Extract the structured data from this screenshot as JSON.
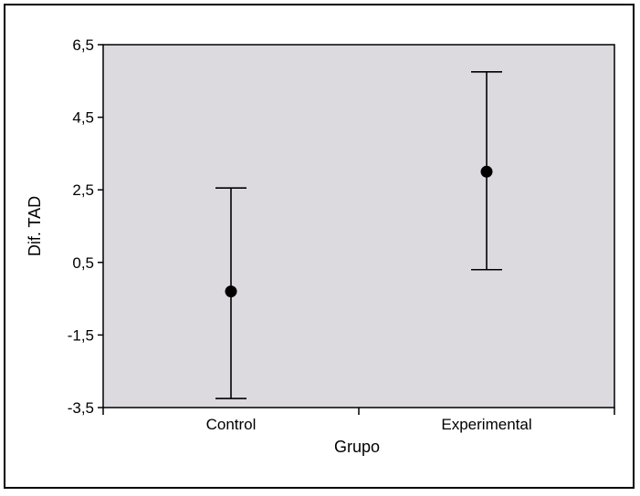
{
  "chart_data": {
    "type": "errorbar",
    "title": "",
    "xlabel": "Grupo",
    "ylabel": "Dif. TAD",
    "categories": [
      "Control",
      "Experimental"
    ],
    "series": [
      {
        "means": [
          -0.3,
          3.0
        ],
        "lower": [
          -3.25,
          0.3
        ],
        "upper": [
          2.55,
          5.75
        ]
      }
    ],
    "ylim": [
      -3.5,
      6.5
    ],
    "yticks": [
      -3.5,
      -1.5,
      0.5,
      2.5,
      4.5,
      6.5
    ],
    "ytick_labels": [
      "-3,5",
      "-1,5",
      "0,5",
      "2,5",
      "4,5",
      "6,5"
    ],
    "grid": false,
    "colors": {
      "plot_background": "#dcdadf",
      "marker": "#000000",
      "errorbar": "#000000"
    }
  }
}
